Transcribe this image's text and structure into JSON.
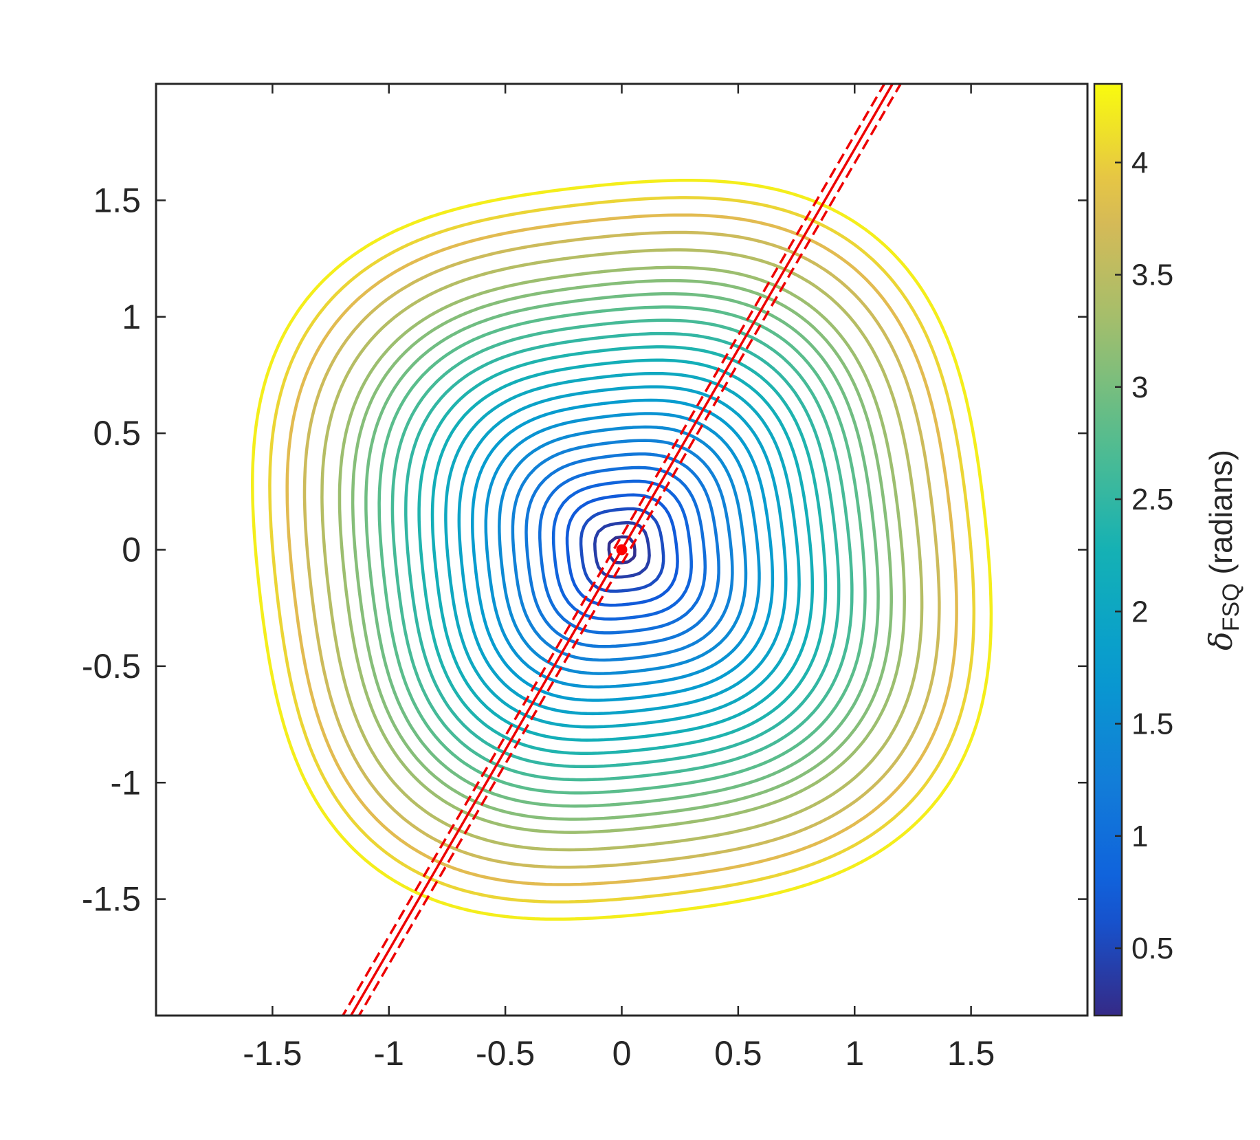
{
  "chart_data": {
    "type": "contour",
    "xlim": [
      -2,
      2
    ],
    "ylim": [
      -2,
      2
    ],
    "xticks": [
      -1.5,
      -1,
      -0.5,
      0,
      0.5,
      1,
      1.5
    ],
    "xtick_labels": [
      "-1.5",
      "-1",
      "-0.5",
      "0",
      "0.5",
      "1",
      "1.5"
    ],
    "yticks": [
      -1.5,
      -1,
      -0.5,
      0,
      0.5,
      1,
      1.5
    ],
    "ytick_labels": [
      "-1.5",
      "-1",
      "-0.5",
      "0",
      "0.5",
      "1",
      "1.5"
    ],
    "colormap": "parula",
    "colorbar": {
      "label_symbol": "δ",
      "label_subscript": "FSQ",
      "label_unit": " (radians)",
      "limits": [
        0.2,
        4.35
      ],
      "ticks": [
        0.5,
        1,
        1.5,
        2,
        2.5,
        3,
        3.5,
        4
      ],
      "tick_labels": [
        "0.5",
        "1",
        "1.5",
        "2",
        "2.5",
        "3",
        "3.5",
        "4"
      ]
    },
    "contour_levels": [
      0.25,
      0.4,
      0.55,
      0.7,
      0.85,
      1.0,
      1.15,
      1.3,
      1.45,
      1.6,
      1.75,
      1.9,
      2.05,
      2.2,
      2.35,
      2.5,
      2.65,
      2.8,
      2.95,
      3.1,
      3.25,
      3.45,
      3.65,
      3.85,
      4.05,
      4.25
    ],
    "center_point": {
      "x": 0,
      "y": 0,
      "color": "#ff0000"
    },
    "fit_line": {
      "slope": 1.72,
      "intercept": 0,
      "dashed_offsets": [
        -0.06,
        0.06
      ],
      "color": "#ee0000"
    },
    "grid": false
  }
}
